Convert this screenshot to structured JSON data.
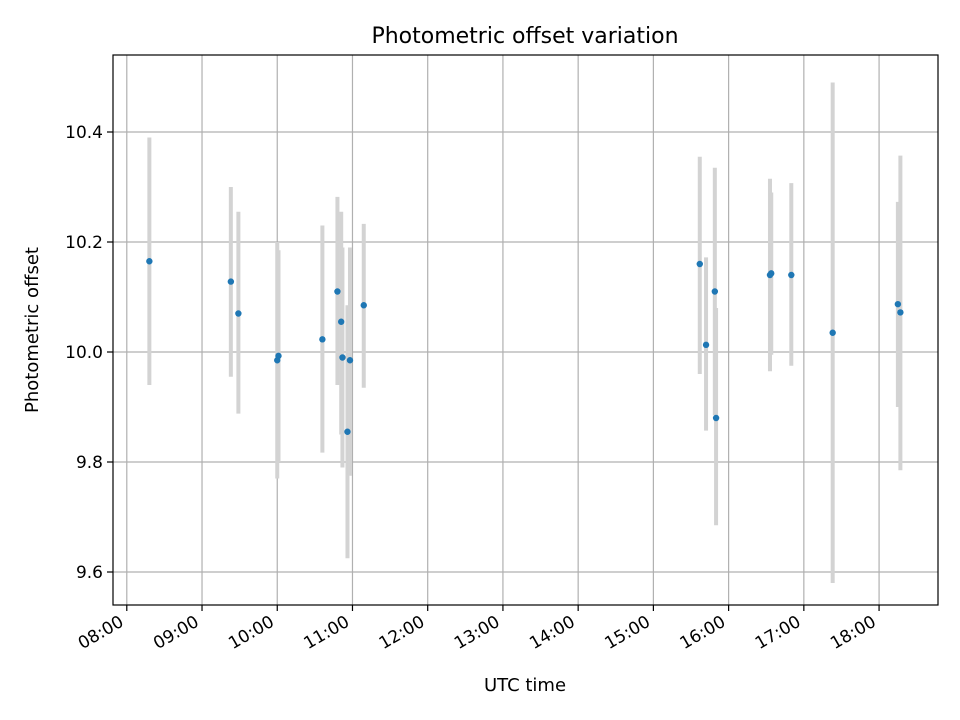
{
  "chart_data": {
    "type": "scatter",
    "title": "Photometric offset variation",
    "xlabel": "UTC time",
    "ylabel": "Photometric offset",
    "x_ticks": [
      "08:00",
      "09:00",
      "10:00",
      "11:00",
      "12:00",
      "13:00",
      "14:00",
      "15:00",
      "16:00",
      "17:00",
      "18:00"
    ],
    "xlim": [
      "07:49",
      "18:47"
    ],
    "y_ticks": [
      "9.6",
      "9.8",
      "10.0",
      "10.2",
      "10.4"
    ],
    "ylim": [
      9.54,
      10.54
    ],
    "grid": true,
    "marker_color": "#1f77b4",
    "errorbar_color": "#d3d3d3",
    "points": [
      {
        "x": "08:18",
        "y": 10.165,
        "ylo": 9.94,
        "yhi": 10.39
      },
      {
        "x": "09:23",
        "y": 10.128,
        "ylo": 9.955,
        "yhi": 10.3
      },
      {
        "x": "09:29",
        "y": 10.07,
        "ylo": 9.888,
        "yhi": 10.255
      },
      {
        "x": "10:00",
        "y": 9.985,
        "ylo": 9.77,
        "yhi": 10.2
      },
      {
        "x": "10:01",
        "y": 9.993,
        "ylo": 9.8,
        "yhi": 10.185
      },
      {
        "x": "10:36",
        "y": 10.023,
        "ylo": 9.817,
        "yhi": 10.23
      },
      {
        "x": "10:48",
        "y": 10.11,
        "ylo": 9.94,
        "yhi": 10.282
      },
      {
        "x": "10:51",
        "y": 10.055,
        "ylo": 9.85,
        "yhi": 10.255
      },
      {
        "x": "10:52",
        "y": 9.99,
        "ylo": 9.79,
        "yhi": 10.19
      },
      {
        "x": "10:56",
        "y": 9.855,
        "ylo": 9.625,
        "yhi": 10.085
      },
      {
        "x": "10:58",
        "y": 9.985,
        "ylo": 9.775,
        "yhi": 10.19
      },
      {
        "x": "11:09",
        "y": 10.085,
        "ylo": 9.935,
        "yhi": 10.233
      },
      {
        "x": "15:37",
        "y": 10.16,
        "ylo": 9.96,
        "yhi": 10.355
      },
      {
        "x": "15:42",
        "y": 10.013,
        "ylo": 9.857,
        "yhi": 10.172
      },
      {
        "x": "15:49",
        "y": 10.11,
        "ylo": 9.885,
        "yhi": 10.335
      },
      {
        "x": "15:50",
        "y": 9.88,
        "ylo": 9.685,
        "yhi": 10.08
      },
      {
        "x": "16:33",
        "y": 10.14,
        "ylo": 9.965,
        "yhi": 10.315
      },
      {
        "x": "16:34",
        "y": 10.143,
        "ylo": 9.995,
        "yhi": 10.29
      },
      {
        "x": "16:50",
        "y": 10.14,
        "ylo": 9.975,
        "yhi": 10.307
      },
      {
        "x": "17:23",
        "y": 10.035,
        "ylo": 9.58,
        "yhi": 10.49
      },
      {
        "x": "18:15",
        "y": 10.087,
        "ylo": 9.9,
        "yhi": 10.273
      },
      {
        "x": "18:17",
        "y": 10.072,
        "ylo": 9.785,
        "yhi": 10.357
      }
    ]
  }
}
